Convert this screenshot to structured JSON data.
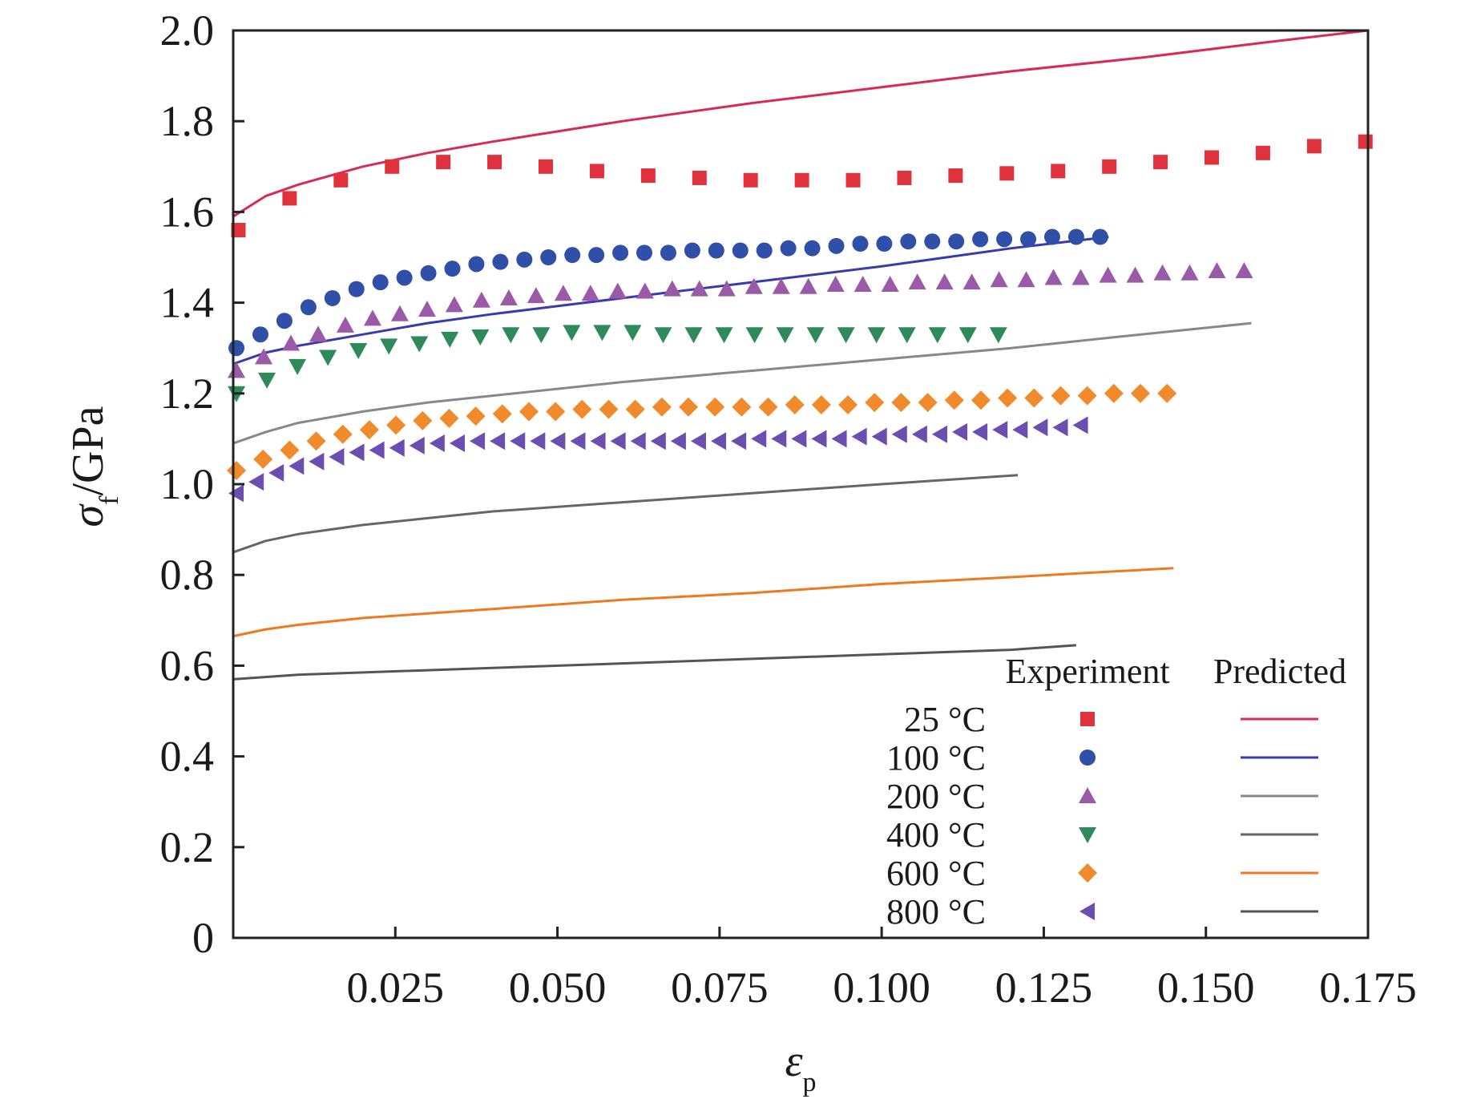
{
  "chart_data": {
    "type": "scatter",
    "title": "",
    "xlabel": {
      "symbol": "ε",
      "subscript": "p"
    },
    "ylabel": {
      "symbol": "σ",
      "subscript": "f",
      "unit": "/GPa"
    },
    "xlim": [
      0,
      0.175
    ],
    "ylim": [
      0,
      2.0
    ],
    "xticks": [
      0.025,
      0.05,
      0.075,
      0.1,
      0.125,
      0.15,
      0.175
    ],
    "xtick_labels": [
      "0.025",
      "0.050",
      "0.075",
      "0.100",
      "0.125",
      "0.150",
      "0.175"
    ],
    "yticks": [
      0,
      0.2,
      0.4,
      0.6,
      0.8,
      1.0,
      1.2,
      1.4,
      1.6,
      1.8,
      2.0
    ],
    "ytick_labels": [
      "0",
      "0.2",
      "0.4",
      "0.6",
      "0.8",
      "1.0",
      "1.2",
      "1.4",
      "1.6",
      "1.8",
      "2.0"
    ],
    "grid": false,
    "legend": {
      "position": "bottom-right",
      "header_experiment": "Experiment",
      "header_predicted": "Predicted"
    },
    "series": [
      {
        "name": "25 °C",
        "color": "#e0323c",
        "line_color": "#d92a55",
        "marker": "square",
        "experiment": {
          "x": [
            0.0008,
            0.0087,
            0.0166,
            0.0245,
            0.0324,
            0.0403,
            0.0482,
            0.0561,
            0.064,
            0.0719,
            0.0798,
            0.0877,
            0.0956,
            0.1035,
            0.1114,
            0.1193,
            0.1272,
            0.1351,
            0.143,
            0.1509,
            0.1588,
            0.1667,
            0.1746
          ],
          "y": [
            1.56,
            1.63,
            1.67,
            1.7,
            1.71,
            1.71,
            1.7,
            1.69,
            1.68,
            1.675,
            1.67,
            1.67,
            1.67,
            1.675,
            1.68,
            1.685,
            1.69,
            1.7,
            1.71,
            1.72,
            1.73,
            1.745,
            1.755
          ]
        },
        "predicted": {
          "x": [
            0.0,
            0.005,
            0.01,
            0.02,
            0.03,
            0.04,
            0.06,
            0.08,
            0.1,
            0.12,
            0.14,
            0.16,
            0.175
          ],
          "y": [
            1.59,
            1.635,
            1.66,
            1.7,
            1.73,
            1.755,
            1.8,
            1.84,
            1.875,
            1.91,
            1.94,
            1.975,
            2.0
          ]
        }
      },
      {
        "name": "100 °C",
        "color": "#2f4fa8",
        "line_color": "#3a3ab0",
        "marker": "circle",
        "experiment": {
          "x": [
            0.0005,
            0.0042,
            0.0079,
            0.0116,
            0.0153,
            0.019,
            0.0227,
            0.0264,
            0.0301,
            0.0338,
            0.0375,
            0.0412,
            0.0449,
            0.0486,
            0.0523,
            0.056,
            0.0597,
            0.0634,
            0.0671,
            0.0708,
            0.0745,
            0.0782,
            0.0819,
            0.0856,
            0.0893,
            0.093,
            0.0967,
            0.1004,
            0.1041,
            0.1078,
            0.1115,
            0.1152,
            0.1189,
            0.1226,
            0.1263,
            0.13,
            0.1337
          ],
          "y": [
            1.3,
            1.33,
            1.36,
            1.39,
            1.41,
            1.43,
            1.445,
            1.455,
            1.465,
            1.475,
            1.485,
            1.49,
            1.495,
            1.5,
            1.505,
            1.505,
            1.51,
            1.51,
            1.51,
            1.515,
            1.515,
            1.515,
            1.515,
            1.52,
            1.52,
            1.525,
            1.53,
            1.53,
            1.535,
            1.535,
            1.535,
            1.54,
            1.54,
            1.54,
            1.545,
            1.545,
            1.545
          ]
        },
        "predicted": {
          "x": [
            0.0,
            0.005,
            0.01,
            0.02,
            0.03,
            0.04,
            0.06,
            0.08,
            0.1,
            0.12,
            0.135
          ],
          "y": [
            1.265,
            1.29,
            1.305,
            1.33,
            1.355,
            1.375,
            1.41,
            1.445,
            1.48,
            1.52,
            1.545
          ]
        }
      },
      {
        "name": "200 °C",
        "color": "#9b5aa8",
        "line_color": "#888888",
        "marker": "triangle-up",
        "experiment": {
          "x": [
            0.0005,
            0.0047,
            0.0089,
            0.0131,
            0.0173,
            0.0215,
            0.0257,
            0.0299,
            0.0341,
            0.0383,
            0.0425,
            0.0467,
            0.0509,
            0.0551,
            0.0593,
            0.0635,
            0.0677,
            0.0719,
            0.0761,
            0.0803,
            0.0845,
            0.0887,
            0.0929,
            0.0971,
            0.1013,
            0.1055,
            0.1097,
            0.1139,
            0.1181,
            0.1223,
            0.1265,
            0.1307,
            0.1349,
            0.1391,
            0.1433,
            0.1475,
            0.1517,
            0.1559
          ],
          "y": [
            1.25,
            1.28,
            1.31,
            1.33,
            1.35,
            1.365,
            1.375,
            1.385,
            1.395,
            1.405,
            1.41,
            1.415,
            1.42,
            1.42,
            1.425,
            1.425,
            1.43,
            1.43,
            1.43,
            1.435,
            1.435,
            1.435,
            1.44,
            1.44,
            1.44,
            1.445,
            1.445,
            1.445,
            1.45,
            1.45,
            1.455,
            1.455,
            1.46,
            1.46,
            1.465,
            1.465,
            1.47,
            1.47
          ]
        },
        "predicted": {
          "x": [
            0.0,
            0.005,
            0.01,
            0.02,
            0.03,
            0.04,
            0.06,
            0.08,
            0.1,
            0.12,
            0.14,
            0.157
          ],
          "y": [
            1.09,
            1.115,
            1.135,
            1.16,
            1.18,
            1.195,
            1.225,
            1.25,
            1.275,
            1.3,
            1.33,
            1.355
          ]
        }
      },
      {
        "name": "400 °C",
        "color": "#2e8a5a",
        "line_color": "#666666",
        "marker": "triangle-down",
        "experiment": {
          "x": [
            0.0005,
            0.0052,
            0.0099,
            0.0146,
            0.0193,
            0.024,
            0.0287,
            0.0334,
            0.0381,
            0.0428,
            0.0475,
            0.0522,
            0.0569,
            0.0616,
            0.0663,
            0.071,
            0.0757,
            0.0804,
            0.0851,
            0.0898,
            0.0945,
            0.0992,
            0.1039,
            0.1086,
            0.1133,
            0.118
          ],
          "y": [
            1.2,
            1.23,
            1.26,
            1.28,
            1.295,
            1.305,
            1.31,
            1.32,
            1.325,
            1.33,
            1.33,
            1.335,
            1.335,
            1.335,
            1.33,
            1.33,
            1.33,
            1.33,
            1.33,
            1.33,
            1.33,
            1.33,
            1.33,
            1.33,
            1.33,
            1.33
          ]
        },
        "predicted": {
          "x": [
            0.0,
            0.005,
            0.01,
            0.02,
            0.03,
            0.04,
            0.06,
            0.08,
            0.1,
            0.121
          ],
          "y": [
            0.85,
            0.875,
            0.89,
            0.91,
            0.925,
            0.94,
            0.96,
            0.98,
            1.0,
            1.02
          ]
        }
      },
      {
        "name": "600 °C",
        "color": "#f08a2a",
        "line_color": "#f07820",
        "marker": "diamond",
        "experiment": {
          "x": [
            0.0005,
            0.0046,
            0.0087,
            0.0128,
            0.0169,
            0.021,
            0.0251,
            0.0292,
            0.0333,
            0.0374,
            0.0415,
            0.0456,
            0.0497,
            0.0538,
            0.0579,
            0.062,
            0.0661,
            0.0702,
            0.0743,
            0.0784,
            0.0825,
            0.0866,
            0.0907,
            0.0948,
            0.0989,
            0.103,
            0.1071,
            0.1112,
            0.1153,
            0.1194,
            0.1235,
            0.1276,
            0.1317,
            0.1358,
            0.1399,
            0.144
          ],
          "y": [
            1.03,
            1.055,
            1.075,
            1.095,
            1.11,
            1.12,
            1.13,
            1.14,
            1.145,
            1.15,
            1.155,
            1.16,
            1.16,
            1.165,
            1.165,
            1.165,
            1.17,
            1.17,
            1.17,
            1.17,
            1.17,
            1.175,
            1.175,
            1.175,
            1.18,
            1.18,
            1.18,
            1.185,
            1.185,
            1.19,
            1.19,
            1.195,
            1.195,
            1.2,
            1.2,
            1.2
          ]
        },
        "predicted": {
          "x": [
            0.0,
            0.005,
            0.01,
            0.02,
            0.03,
            0.04,
            0.06,
            0.08,
            0.1,
            0.12,
            0.145
          ],
          "y": [
            0.665,
            0.68,
            0.69,
            0.705,
            0.715,
            0.725,
            0.745,
            0.76,
            0.78,
            0.795,
            0.815
          ]
        }
      },
      {
        "name": "800 °C",
        "color": "#6a4fb0",
        "line_color": "#555555",
        "marker": "triangle-left",
        "experiment": {
          "x": [
            0.0005,
            0.0036,
            0.0067,
            0.0098,
            0.0129,
            0.016,
            0.0191,
            0.0222,
            0.0253,
            0.0284,
            0.0315,
            0.0346,
            0.0377,
            0.0408,
            0.0439,
            0.047,
            0.0501,
            0.0532,
            0.0563,
            0.0594,
            0.0625,
            0.0656,
            0.0687,
            0.0718,
            0.0749,
            0.078,
            0.0811,
            0.0842,
            0.0873,
            0.0904,
            0.0935,
            0.0966,
            0.0997,
            0.1028,
            0.1059,
            0.109,
            0.1121,
            0.1152,
            0.1183,
            0.1214,
            0.1245,
            0.1276,
            0.1307
          ],
          "y": [
            0.98,
            1.005,
            1.025,
            1.04,
            1.05,
            1.06,
            1.07,
            1.075,
            1.08,
            1.085,
            1.09,
            1.09,
            1.095,
            1.095,
            1.095,
            1.095,
            1.095,
            1.095,
            1.095,
            1.095,
            1.095,
            1.095,
            1.095,
            1.095,
            1.095,
            1.095,
            1.1,
            1.1,
            1.1,
            1.1,
            1.1,
            1.105,
            1.105,
            1.11,
            1.11,
            1.11,
            1.115,
            1.115,
            1.12,
            1.12,
            1.125,
            1.125,
            1.13
          ]
        },
        "predicted": {
          "x": [
            0.0,
            0.01,
            0.02,
            0.04,
            0.06,
            0.08,
            0.1,
            0.12,
            0.13
          ],
          "y": [
            0.57,
            0.58,
            0.585,
            0.595,
            0.605,
            0.615,
            0.625,
            0.635,
            0.645
          ]
        }
      }
    ]
  }
}
